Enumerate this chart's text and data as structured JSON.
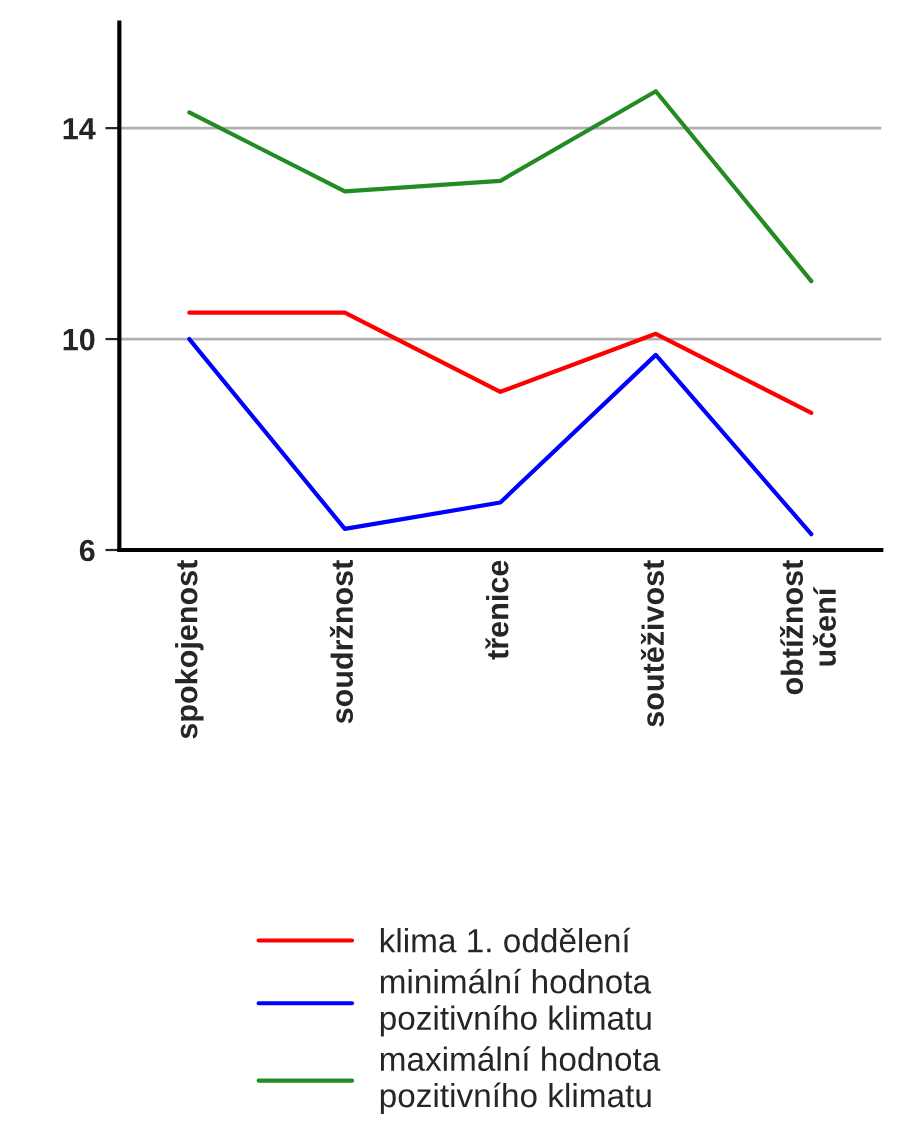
{
  "chart_data": {
    "type": "line",
    "categories": [
      "spokojenost",
      "soudržnost",
      "třenice",
      "soutěživost",
      "obtížnost\nučení"
    ],
    "series": [
      {
        "name": "klima 1. oddělení",
        "color": "#ff0000",
        "values": [
          10.5,
          10.5,
          9.0,
          10.1,
          8.6
        ]
      },
      {
        "name": "minimální hodnota\npozitivního klimatu",
        "color": "#0000ff",
        "values": [
          10.0,
          6.4,
          6.9,
          9.7,
          6.3
        ]
      },
      {
        "name": "maximální hodnota\npozitivního klimatu",
        "color": "#228b22",
        "values": [
          14.3,
          12.8,
          13.0,
          14.7,
          11.1
        ]
      }
    ],
    "ylim": [
      6,
      16
    ],
    "yticks": [
      6,
      10,
      14
    ],
    "grid": "y",
    "legend": "bottom",
    "marker": "none",
    "line_style": "solid"
  }
}
